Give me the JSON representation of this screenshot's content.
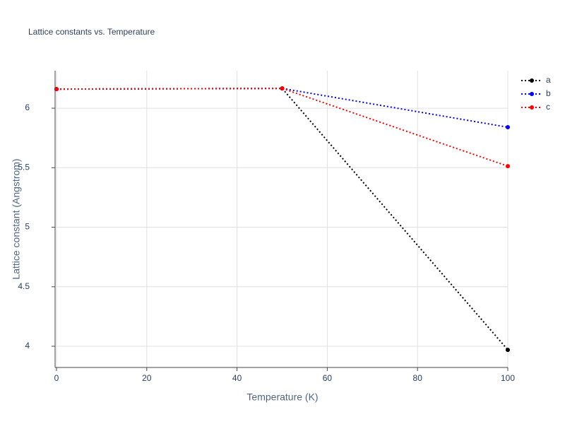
{
  "chart_data": {
    "type": "line",
    "title": "Lattice constants vs. Temperature",
    "x_label": "Temperature (K)",
    "y_label": "Lattice constant (Angstrom)",
    "x": [
      0,
      50,
      100
    ],
    "series": [
      {
        "name": "a",
        "color": "#000000",
        "values": [
          6.16,
          6.166,
          3.97
        ]
      },
      {
        "name": "b",
        "color": "#0000ff",
        "values": [
          6.16,
          6.166,
          5.84
        ]
      },
      {
        "name": "c",
        "color": "#ff0000",
        "values": [
          6.16,
          6.166,
          5.513
        ]
      }
    ],
    "xlim": [
      0,
      100
    ],
    "xticks": [
      0,
      20,
      40,
      60,
      80,
      100
    ],
    "ylim": [
      3.822,
      6.315
    ],
    "yticks": [
      4,
      4.5,
      5,
      5.5,
      6
    ],
    "grid": true,
    "legend": "top-right"
  }
}
